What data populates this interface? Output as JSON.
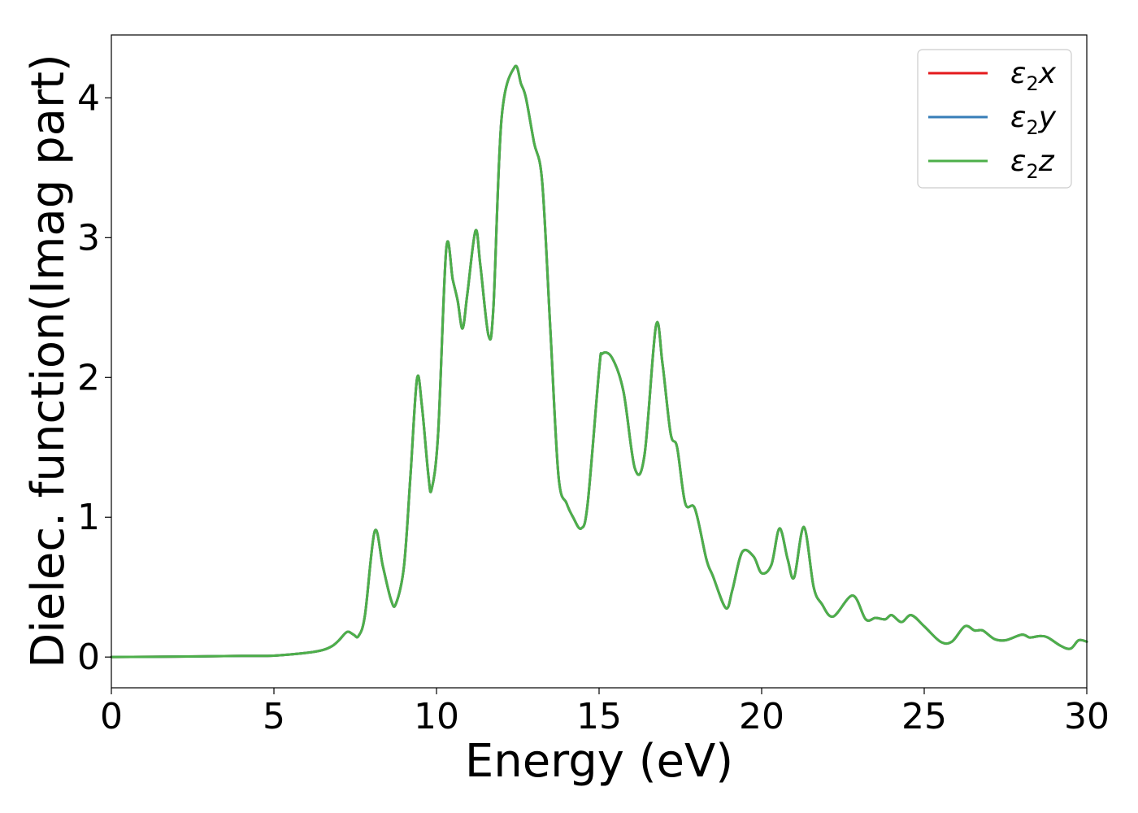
{
  "chart_data": {
    "type": "line",
    "title": "",
    "xlabel": "Energy (eV)",
    "ylabel": "Dielec. function(Imag part)",
    "xlim": [
      0,
      30
    ],
    "ylim": [
      -0.22,
      4.45
    ],
    "xticks": [
      0,
      5,
      10,
      15,
      20,
      25,
      30
    ],
    "yticks": [
      0,
      1,
      2,
      3,
      4
    ],
    "xtick_labels": [
      "0",
      "5",
      "10",
      "15",
      "20",
      "25",
      "30"
    ],
    "ytick_labels": [
      "0",
      "1",
      "2",
      "3",
      "4"
    ],
    "grid": false,
    "legend_position": "top-right",
    "series": [
      {
        "name": "ε₂x",
        "legend_base": "ε",
        "legend_sub": "2",
        "legend_suffix": "x",
        "color": "#e41a1c",
        "x": [
          0,
          2,
          4,
          5,
          6,
          6.5,
          6.8,
          7.0,
          7.25,
          7.45,
          7.6,
          7.8,
          8.1,
          8.35,
          8.6,
          8.75,
          9.0,
          9.2,
          9.4,
          9.55,
          9.75,
          9.85,
          10.05,
          10.3,
          10.5,
          10.65,
          10.8,
          10.95,
          11.2,
          11.35,
          11.6,
          11.75,
          12.0,
          12.4,
          12.6,
          12.75,
          13.0,
          13.25,
          13.5,
          13.75,
          14.0,
          14.2,
          14.45,
          14.65,
          15.0,
          15.1,
          15.4,
          15.75,
          16.1,
          16.4,
          16.75,
          16.95,
          17.2,
          17.4,
          17.65,
          17.95,
          18.3,
          18.5,
          18.9,
          19.1,
          19.4,
          19.75,
          20.0,
          20.3,
          20.55,
          20.8,
          21.0,
          21.3,
          21.6,
          21.85,
          22.2,
          22.8,
          23.2,
          23.5,
          23.8,
          24.0,
          24.3,
          24.6,
          25.0,
          25.5,
          25.85,
          26.25,
          26.55,
          26.8,
          27.15,
          27.5,
          28.0,
          28.25,
          28.55,
          28.8,
          29.2,
          29.5,
          29.75,
          30.0
        ],
        "y": [
          0.0,
          0.003,
          0.008,
          0.01,
          0.03,
          0.05,
          0.08,
          0.12,
          0.18,
          0.16,
          0.15,
          0.3,
          0.9,
          0.65,
          0.41,
          0.38,
          0.65,
          1.3,
          1.99,
          1.8,
          1.3,
          1.2,
          1.6,
          2.92,
          2.7,
          2.55,
          2.35,
          2.6,
          3.05,
          2.8,
          2.3,
          2.5,
          3.85,
          4.22,
          4.1,
          4.0,
          3.68,
          3.4,
          2.35,
          1.3,
          1.1,
          1.0,
          0.92,
          1.1,
          2.05,
          2.17,
          2.14,
          1.9,
          1.35,
          1.45,
          2.37,
          2.1,
          1.6,
          1.5,
          1.1,
          1.06,
          0.7,
          0.58,
          0.35,
          0.48,
          0.75,
          0.72,
          0.6,
          0.66,
          0.92,
          0.7,
          0.57,
          0.93,
          0.5,
          0.38,
          0.29,
          0.44,
          0.27,
          0.28,
          0.27,
          0.3,
          0.25,
          0.3,
          0.22,
          0.11,
          0.11,
          0.22,
          0.19,
          0.19,
          0.13,
          0.12,
          0.16,
          0.14,
          0.15,
          0.14,
          0.08,
          0.06,
          0.12,
          0.11
        ]
      },
      {
        "name": "ε₂y",
        "legend_base": "ε",
        "legend_sub": "2",
        "legend_suffix": "y",
        "color": "#377eb8",
        "x": [
          0,
          2,
          4,
          5,
          6,
          6.5,
          6.8,
          7.0,
          7.25,
          7.45,
          7.6,
          7.8,
          8.1,
          8.35,
          8.6,
          8.75,
          9.0,
          9.2,
          9.4,
          9.55,
          9.75,
          9.85,
          10.05,
          10.3,
          10.5,
          10.65,
          10.8,
          10.95,
          11.2,
          11.35,
          11.6,
          11.75,
          12.0,
          12.4,
          12.6,
          12.75,
          13.0,
          13.25,
          13.5,
          13.75,
          14.0,
          14.2,
          14.45,
          14.65,
          15.0,
          15.1,
          15.4,
          15.75,
          16.1,
          16.4,
          16.75,
          16.95,
          17.2,
          17.4,
          17.65,
          17.95,
          18.3,
          18.5,
          18.9,
          19.1,
          19.4,
          19.75,
          20.0,
          20.3,
          20.55,
          20.8,
          21.0,
          21.3,
          21.6,
          21.85,
          22.2,
          22.8,
          23.2,
          23.5,
          23.8,
          24.0,
          24.3,
          24.6,
          25.0,
          25.5,
          25.85,
          26.25,
          26.55,
          26.8,
          27.15,
          27.5,
          28.0,
          28.25,
          28.55,
          28.8,
          29.2,
          29.5,
          29.75,
          30.0
        ],
        "y": [
          0.0,
          0.003,
          0.008,
          0.01,
          0.03,
          0.05,
          0.08,
          0.12,
          0.18,
          0.16,
          0.15,
          0.3,
          0.9,
          0.65,
          0.41,
          0.38,
          0.65,
          1.3,
          1.99,
          1.8,
          1.3,
          1.2,
          1.6,
          2.92,
          2.7,
          2.55,
          2.35,
          2.6,
          3.05,
          2.8,
          2.3,
          2.5,
          3.85,
          4.22,
          4.1,
          4.0,
          3.68,
          3.4,
          2.35,
          1.3,
          1.1,
          1.0,
          0.92,
          1.1,
          2.05,
          2.17,
          2.14,
          1.9,
          1.35,
          1.45,
          2.37,
          2.1,
          1.6,
          1.5,
          1.1,
          1.06,
          0.7,
          0.58,
          0.35,
          0.48,
          0.75,
          0.72,
          0.6,
          0.66,
          0.92,
          0.7,
          0.57,
          0.93,
          0.5,
          0.38,
          0.29,
          0.44,
          0.27,
          0.28,
          0.27,
          0.3,
          0.25,
          0.3,
          0.22,
          0.11,
          0.11,
          0.22,
          0.19,
          0.19,
          0.13,
          0.12,
          0.16,
          0.14,
          0.15,
          0.14,
          0.08,
          0.06,
          0.12,
          0.11
        ]
      },
      {
        "name": "ε₂z",
        "legend_base": "ε",
        "legend_sub": "2",
        "legend_suffix": "z",
        "color": "#4daf4a",
        "x": [
          0,
          2,
          4,
          5,
          6,
          6.5,
          6.8,
          7.0,
          7.25,
          7.45,
          7.6,
          7.8,
          8.1,
          8.35,
          8.6,
          8.75,
          9.0,
          9.2,
          9.4,
          9.55,
          9.75,
          9.85,
          10.05,
          10.3,
          10.5,
          10.65,
          10.8,
          10.95,
          11.2,
          11.35,
          11.6,
          11.75,
          12.0,
          12.4,
          12.6,
          12.75,
          13.0,
          13.25,
          13.5,
          13.75,
          14.0,
          14.2,
          14.45,
          14.65,
          15.0,
          15.1,
          15.4,
          15.75,
          16.1,
          16.4,
          16.75,
          16.95,
          17.2,
          17.4,
          17.65,
          17.95,
          18.3,
          18.5,
          18.9,
          19.1,
          19.4,
          19.75,
          20.0,
          20.3,
          20.55,
          20.8,
          21.0,
          21.3,
          21.6,
          21.85,
          22.2,
          22.8,
          23.2,
          23.5,
          23.8,
          24.0,
          24.3,
          24.6,
          25.0,
          25.5,
          25.85,
          26.25,
          26.55,
          26.8,
          27.15,
          27.5,
          28.0,
          28.25,
          28.55,
          28.8,
          29.2,
          29.5,
          29.75,
          30.0
        ],
        "y": [
          0.0,
          0.003,
          0.008,
          0.01,
          0.03,
          0.05,
          0.08,
          0.12,
          0.18,
          0.16,
          0.15,
          0.3,
          0.9,
          0.65,
          0.41,
          0.38,
          0.65,
          1.3,
          1.99,
          1.8,
          1.3,
          1.2,
          1.6,
          2.92,
          2.7,
          2.55,
          2.35,
          2.6,
          3.05,
          2.8,
          2.3,
          2.5,
          3.85,
          4.22,
          4.1,
          4.0,
          3.68,
          3.4,
          2.35,
          1.3,
          1.1,
          1.0,
          0.92,
          1.1,
          2.05,
          2.17,
          2.14,
          1.9,
          1.35,
          1.45,
          2.37,
          2.1,
          1.6,
          1.5,
          1.1,
          1.06,
          0.7,
          0.58,
          0.35,
          0.48,
          0.75,
          0.72,
          0.6,
          0.66,
          0.92,
          0.7,
          0.57,
          0.93,
          0.5,
          0.38,
          0.29,
          0.44,
          0.27,
          0.28,
          0.27,
          0.3,
          0.25,
          0.3,
          0.22,
          0.11,
          0.11,
          0.22,
          0.19,
          0.19,
          0.13,
          0.12,
          0.16,
          0.14,
          0.15,
          0.14,
          0.08,
          0.06,
          0.12,
          0.11
        ]
      }
    ]
  }
}
